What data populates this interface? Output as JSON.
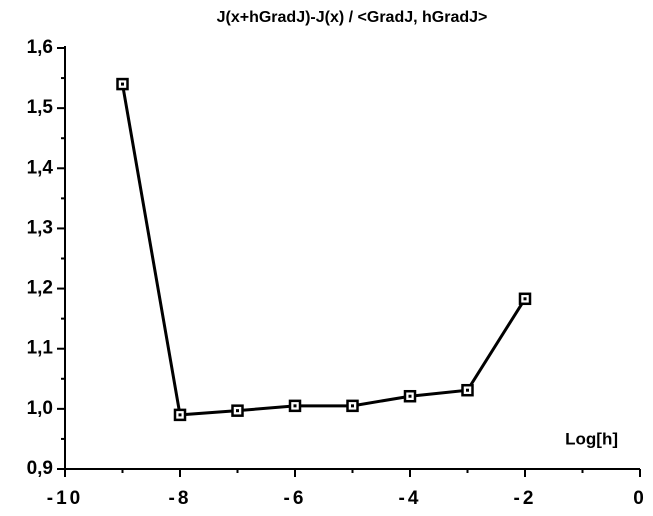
{
  "chart_data": {
    "type": "line",
    "title": "J(x+hGradJ)-J(x) / <GradJ, hGradJ>",
    "x_label": "Log[h]",
    "series": [
      {
        "name": null,
        "color": "#000000",
        "x": [
          -9,
          -8,
          -7,
          -6,
          -5,
          -4,
          -3,
          -2
        ],
        "values": [
          1.54,
          0.99,
          0.997,
          1.005,
          1.005,
          1.021,
          1.031,
          1.183
        ]
      }
    ],
    "xlim": [
      -10,
      0
    ],
    "xticks": [
      -10,
      -8,
      -6,
      -4,
      -2,
      0
    ],
    "ylim": [
      0.9,
      1.6
    ],
    "yticks": [
      {
        "value": 0.9,
        "label": "0,9"
      },
      {
        "value": 1.0,
        "label": "1,0"
      },
      {
        "value": 1.1,
        "label": "1,1"
      },
      {
        "value": 1.2,
        "label": "1,2"
      },
      {
        "value": 1.3,
        "label": "1,3"
      },
      {
        "value": 1.4,
        "label": "1,4"
      },
      {
        "value": 1.5,
        "label": "1,5"
      },
      {
        "value": 1.6,
        "label": "1,6"
      }
    ],
    "grid": false
  }
}
